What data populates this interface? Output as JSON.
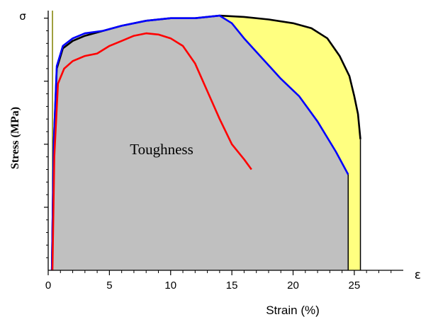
{
  "chart_data": {
    "type": "line",
    "title": "",
    "xlabel": "Strain (%)",
    "ylabel": "Stress (MPa)",
    "x_symbol": "ε",
    "y_symbol": "σ",
    "xlim": [
      0,
      29
    ],
    "x_ticks": [
      0,
      5,
      10,
      15,
      20,
      25
    ],
    "x_tick_labels": [
      "0",
      "5",
      "10",
      "15",
      "20",
      "25"
    ],
    "y_ticks": [
      0.25,
      0.5,
      0.75,
      1.0
    ],
    "ylim": [
      0,
      1.03
    ],
    "annotation": "Toughness",
    "colors": {
      "grey_area": "#c0c0c0",
      "yellow_area": "#ffff80",
      "black": "#000000",
      "blue": "#0000ff",
      "red": "#ff0000",
      "olive": "#808000"
    },
    "series": [
      {
        "color": "#000000",
        "x": [
          0.3,
          0.45,
          0.7,
          1.2,
          2,
          3,
          4.5,
          6,
          8,
          10,
          12,
          14,
          16,
          18,
          20,
          21.5,
          22.8,
          23.8,
          24.6,
          25.0,
          25.3,
          25.5
        ],
        "y": [
          0,
          0.5,
          0.8,
          0.88,
          0.91,
          0.93,
          0.95,
          0.97,
          0.99,
          1.0,
          1.0,
          1.01,
          1.005,
          0.995,
          0.98,
          0.96,
          0.92,
          0.85,
          0.77,
          0.69,
          0.62,
          0.52
        ]
      },
      {
        "color": "#0000ff",
        "x": [
          0.3,
          0.45,
          0.7,
          1.2,
          2,
          3,
          4.5,
          6,
          8,
          10,
          12,
          14,
          15,
          16,
          17.5,
          19,
          20.5,
          22,
          23.5,
          24.5
        ],
        "y": [
          0,
          0.5,
          0.81,
          0.89,
          0.92,
          0.94,
          0.95,
          0.97,
          0.99,
          1.0,
          1.0,
          1.01,
          0.98,
          0.92,
          0.84,
          0.76,
          0.69,
          0.59,
          0.47,
          0.38
        ]
      },
      {
        "color": "#ff0000",
        "x": [
          0.35,
          0.5,
          0.8,
          1.3,
          2,
          3,
          4,
          5,
          6,
          7,
          8,
          9,
          10,
          11,
          12,
          13,
          14,
          15,
          16,
          16.6
        ],
        "y": [
          0,
          0.45,
          0.74,
          0.8,
          0.83,
          0.85,
          0.86,
          0.89,
          0.91,
          0.93,
          0.94,
          0.935,
          0.92,
          0.89,
          0.82,
          0.71,
          0.6,
          0.5,
          0.44,
          0.4
        ]
      }
    ]
  }
}
